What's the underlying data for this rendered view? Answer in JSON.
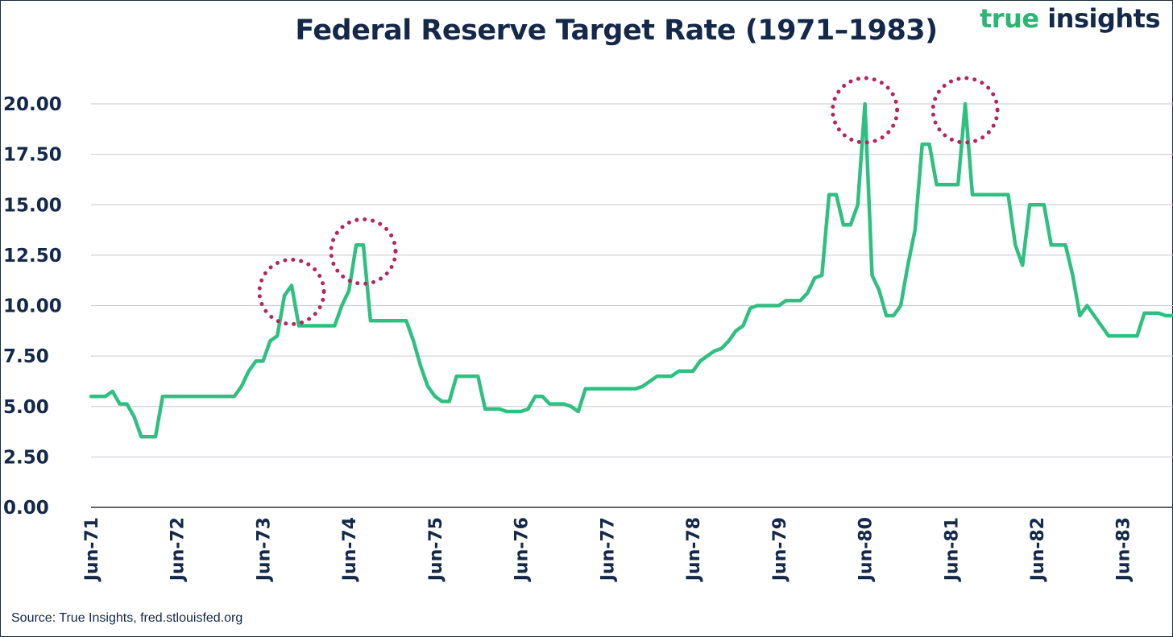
{
  "logo": {
    "word1": "true",
    "word2": "insights"
  },
  "source": "Source: True Insights, fred.stlouisfed.org",
  "colors": {
    "line": "#2fc081",
    "highlight": "#b5245e",
    "text": "#14284a",
    "grid": "#c8c8d2"
  },
  "chart_data": {
    "type": "line",
    "title": "Federal Reserve Target Rate (1971–1983)",
    "xlabel": "",
    "ylabel": "",
    "ylim": [
      0,
      20
    ],
    "yticks": [
      "0.00",
      "2.50",
      "5.00",
      "7.50",
      "10.00",
      "12.50",
      "15.00",
      "17.50",
      "20.00"
    ],
    "xticks": [
      "Jun-71",
      "Jun-72",
      "Jun-73",
      "Jun-74",
      "Jun-75",
      "Jun-76",
      "Jun-77",
      "Jun-78",
      "Jun-79",
      "Jun-80",
      "Jun-81",
      "Jun-82",
      "Jun-83"
    ],
    "xlim": [
      "1971-06",
      "1984-01"
    ],
    "grid": true,
    "legend": "none",
    "series": [
      {
        "points": [
          [
            "1971-06",
            5.5
          ],
          [
            "1971-07",
            5.5
          ],
          [
            "1971-08",
            5.5
          ],
          [
            "1971-09",
            5.75
          ],
          [
            "1971-10",
            5.125
          ],
          [
            "1971-11",
            5.125
          ],
          [
            "1971-12",
            4.5
          ],
          [
            "1972-01",
            3.5
          ],
          [
            "1972-02",
            3.5
          ],
          [
            "1972-03",
            3.5
          ],
          [
            "1972-04",
            5.5
          ],
          [
            "1972-05",
            5.5
          ],
          [
            "1972-06",
            5.5
          ],
          [
            "1972-07",
            5.5
          ],
          [
            "1972-08",
            5.5
          ],
          [
            "1972-09",
            5.5
          ],
          [
            "1972-10",
            5.5
          ],
          [
            "1972-11",
            5.5
          ],
          [
            "1972-12",
            5.5
          ],
          [
            "1973-01",
            5.5
          ],
          [
            "1973-02",
            5.5
          ],
          [
            "1973-03",
            6.0
          ],
          [
            "1973-04",
            6.75
          ],
          [
            "1973-05",
            7.25
          ],
          [
            "1973-06",
            7.25
          ],
          [
            "1973-07",
            8.25
          ],
          [
            "1973-08",
            8.5
          ],
          [
            "1973-09",
            10.5
          ],
          [
            "1973-10",
            11.0
          ],
          [
            "1973-11",
            9.0
          ],
          [
            "1973-12",
            9.0
          ],
          [
            "1974-01",
            9.0
          ],
          [
            "1974-02",
            9.0
          ],
          [
            "1974-03",
            9.0
          ],
          [
            "1974-04",
            9.0
          ],
          [
            "1974-05",
            10.0
          ],
          [
            "1974-06",
            10.75
          ],
          [
            "1974-07",
            13.0
          ],
          [
            "1974-08",
            13.0
          ],
          [
            "1974-09",
            9.25
          ],
          [
            "1974-10",
            9.25
          ],
          [
            "1974-11",
            9.25
          ],
          [
            "1974-12",
            9.25
          ],
          [
            "1975-01",
            9.25
          ],
          [
            "1975-02",
            9.25
          ],
          [
            "1975-03",
            8.25
          ],
          [
            "1975-04",
            7.0
          ],
          [
            "1975-05",
            6.0
          ],
          [
            "1975-06",
            5.5
          ],
          [
            "1975-07",
            5.25
          ],
          [
            "1975-08",
            5.25
          ],
          [
            "1975-09",
            6.5
          ],
          [
            "1975-10",
            6.5
          ],
          [
            "1975-11",
            6.5
          ],
          [
            "1975-12",
            6.5
          ],
          [
            "1976-01",
            4.875
          ],
          [
            "1976-02",
            4.875
          ],
          [
            "1976-03",
            4.875
          ],
          [
            "1976-04",
            4.75
          ],
          [
            "1976-05",
            4.75
          ],
          [
            "1976-06",
            4.75
          ],
          [
            "1976-07",
            4.875
          ],
          [
            "1976-08",
            5.5
          ],
          [
            "1976-09",
            5.5
          ],
          [
            "1976-10",
            5.125
          ],
          [
            "1976-11",
            5.125
          ],
          [
            "1976-12",
            5.125
          ],
          [
            "1977-01",
            5.0
          ],
          [
            "1977-02",
            4.75
          ],
          [
            "1977-03",
            5.875
          ],
          [
            "1977-04",
            5.875
          ],
          [
            "1977-05",
            5.875
          ],
          [
            "1977-06",
            5.875
          ],
          [
            "1977-07",
            5.875
          ],
          [
            "1977-08",
            5.875
          ],
          [
            "1977-09",
            5.875
          ],
          [
            "1977-10",
            5.875
          ],
          [
            "1977-11",
            6.0
          ],
          [
            "1977-12",
            6.25
          ],
          [
            "1978-01",
            6.5
          ],
          [
            "1978-02",
            6.5
          ],
          [
            "1978-03",
            6.5
          ],
          [
            "1978-04",
            6.75
          ],
          [
            "1978-05",
            6.75
          ],
          [
            "1978-06",
            6.75
          ],
          [
            "1978-07",
            7.25
          ],
          [
            "1978-08",
            7.5
          ],
          [
            "1978-09",
            7.75
          ],
          [
            "1978-10",
            7.875
          ],
          [
            "1978-11",
            8.25
          ],
          [
            "1978-12",
            8.75
          ],
          [
            "1979-01",
            9.0
          ],
          [
            "1979-02",
            9.875
          ],
          [
            "1979-03",
            10.0
          ],
          [
            "1979-04",
            10.0
          ],
          [
            "1979-05",
            10.0
          ],
          [
            "1979-06",
            10.0
          ],
          [
            "1979-07",
            10.25
          ],
          [
            "1979-08",
            10.25
          ],
          [
            "1979-09",
            10.25
          ],
          [
            "1979-10",
            10.625
          ],
          [
            "1979-11",
            11.375
          ],
          [
            "1979-12",
            11.5
          ],
          [
            "1980-01",
            15.5
          ],
          [
            "1980-02",
            15.5
          ],
          [
            "1980-03",
            14.0
          ],
          [
            "1980-04",
            14.0
          ],
          [
            "1980-05",
            15.0
          ],
          [
            "1980-06",
            20.0
          ],
          [
            "1980-07",
            11.5
          ],
          [
            "1980-08",
            10.75
          ],
          [
            "1980-09",
            9.5
          ],
          [
            "1980-10",
            9.5
          ],
          [
            "1980-11",
            10.0
          ],
          [
            "1980-12",
            12.0
          ],
          [
            "1981-01",
            13.75
          ],
          [
            "1981-02",
            18.0
          ],
          [
            "1981-03",
            18.0
          ],
          [
            "1981-04",
            16.0
          ],
          [
            "1981-05",
            16.0
          ],
          [
            "1981-06",
            16.0
          ],
          [
            "1981-07",
            16.0
          ],
          [
            "1981-08",
            20.0
          ],
          [
            "1981-09",
            15.5
          ],
          [
            "1981-10",
            15.5
          ],
          [
            "1981-11",
            15.5
          ],
          [
            "1981-12",
            15.5
          ],
          [
            "1982-01",
            15.5
          ],
          [
            "1982-02",
            15.5
          ],
          [
            "1982-03",
            13.0
          ],
          [
            "1982-04",
            12.0
          ],
          [
            "1982-05",
            15.0
          ],
          [
            "1982-06",
            15.0
          ],
          [
            "1982-07",
            15.0
          ],
          [
            "1982-08",
            13.0
          ],
          [
            "1982-09",
            13.0
          ],
          [
            "1982-10",
            13.0
          ],
          [
            "1982-11",
            11.5
          ],
          [
            "1982-12",
            9.5
          ],
          [
            "1983-01",
            10.0
          ],
          [
            "1983-02",
            9.5
          ],
          [
            "1983-03",
            9.0
          ],
          [
            "1983-04",
            8.5
          ],
          [
            "1983-05",
            8.5
          ],
          [
            "1983-06",
            8.5
          ],
          [
            "1983-07",
            8.5
          ],
          [
            "1983-08",
            8.5
          ],
          [
            "1983-09",
            9.625
          ],
          [
            "1983-10",
            9.625
          ],
          [
            "1983-11",
            9.625
          ],
          [
            "1983-12",
            9.5
          ],
          [
            "1984-01",
            9.5
          ]
        ]
      }
    ],
    "highlighted_peaks": [
      {
        "x": "1973-10",
        "y": 11.0
      },
      {
        "x": "1974-08",
        "y": 13.0
      },
      {
        "x": "1980-06",
        "y": 20.0
      },
      {
        "x": "1981-08",
        "y": 20.0
      }
    ]
  }
}
